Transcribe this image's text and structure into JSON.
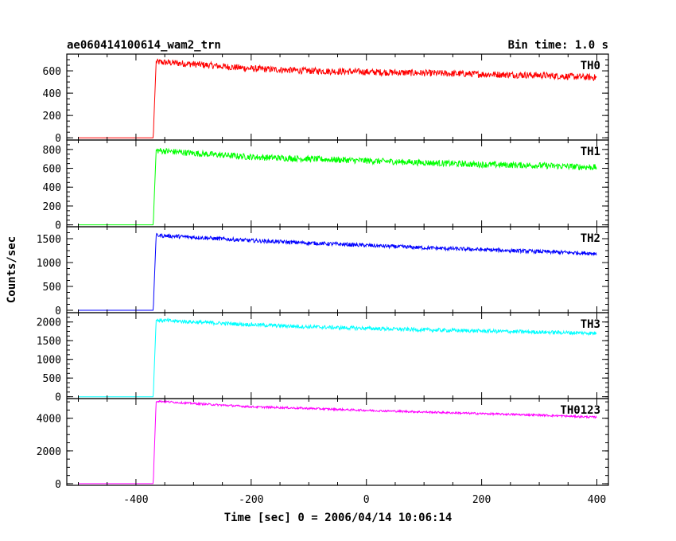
{
  "chart_data": {
    "type": "line",
    "title": "ae060414100614_wam2_trn",
    "bin_time": "Bin time: 1.0 s",
    "xlabel": "Time [sec] 0 = 2006/04/14 10:06:14",
    "ylabel": "Counts/sec",
    "xlim": [
      -520,
      420
    ],
    "x_ticks": [
      -400,
      -200,
      0,
      200,
      400
    ],
    "panels": [
      {
        "name": "TH0",
        "color": "#ff0000",
        "ylim": [
          -20,
          750
        ],
        "y_ticks": [
          0,
          200,
          400,
          600
        ],
        "x": [
          -500,
          -370,
          -365,
          -300,
          -200,
          -100,
          0,
          100,
          200,
          300,
          400
        ],
        "y": [
          0,
          0,
          680,
          660,
          620,
          600,
          590,
          580,
          570,
          560,
          540
        ],
        "noise": 30
      },
      {
        "name": "TH1",
        "color": "#00ff00",
        "ylim": [
          -20,
          900
        ],
        "y_ticks": [
          0,
          200,
          400,
          600,
          800
        ],
        "x": [
          -500,
          -370,
          -365,
          -300,
          -200,
          -100,
          0,
          100,
          200,
          300,
          400
        ],
        "y": [
          0,
          0,
          790,
          760,
          720,
          700,
          680,
          660,
          640,
          630,
          610
        ],
        "noise": 33
      },
      {
        "name": "TH2",
        "color": "#0000ff",
        "ylim": [
          -50,
          1750
        ],
        "y_ticks": [
          0,
          500,
          1000,
          1500
        ],
        "x": [
          -500,
          -370,
          -365,
          -300,
          -200,
          -100,
          0,
          100,
          200,
          300,
          400
        ],
        "y": [
          0,
          0,
          1570,
          1530,
          1460,
          1410,
          1360,
          1310,
          1270,
          1230,
          1190
        ],
        "noise": 40
      },
      {
        "name": "TH3",
        "color": "#00ffff",
        "ylim": [
          -50,
          2250
        ],
        "y_ticks": [
          0,
          500,
          1000,
          1500,
          2000
        ],
        "x": [
          -500,
          -370,
          -365,
          -300,
          -200,
          -100,
          0,
          100,
          200,
          300,
          400
        ],
        "y": [
          0,
          0,
          2050,
          2000,
          1930,
          1870,
          1830,
          1790,
          1760,
          1730,
          1700
        ],
        "noise": 50
      },
      {
        "name": "TH0123",
        "color": "#ff00ff",
        "ylim": [
          -100,
          5200
        ],
        "y_ticks": [
          0,
          2000,
          4000
        ],
        "x": [
          -500,
          -370,
          -365,
          -300,
          -200,
          -100,
          0,
          100,
          200,
          300,
          400
        ],
        "y": [
          0,
          0,
          5050,
          4900,
          4700,
          4600,
          4480,
          4380,
          4280,
          4190,
          4060
        ],
        "noise": 60
      }
    ]
  }
}
